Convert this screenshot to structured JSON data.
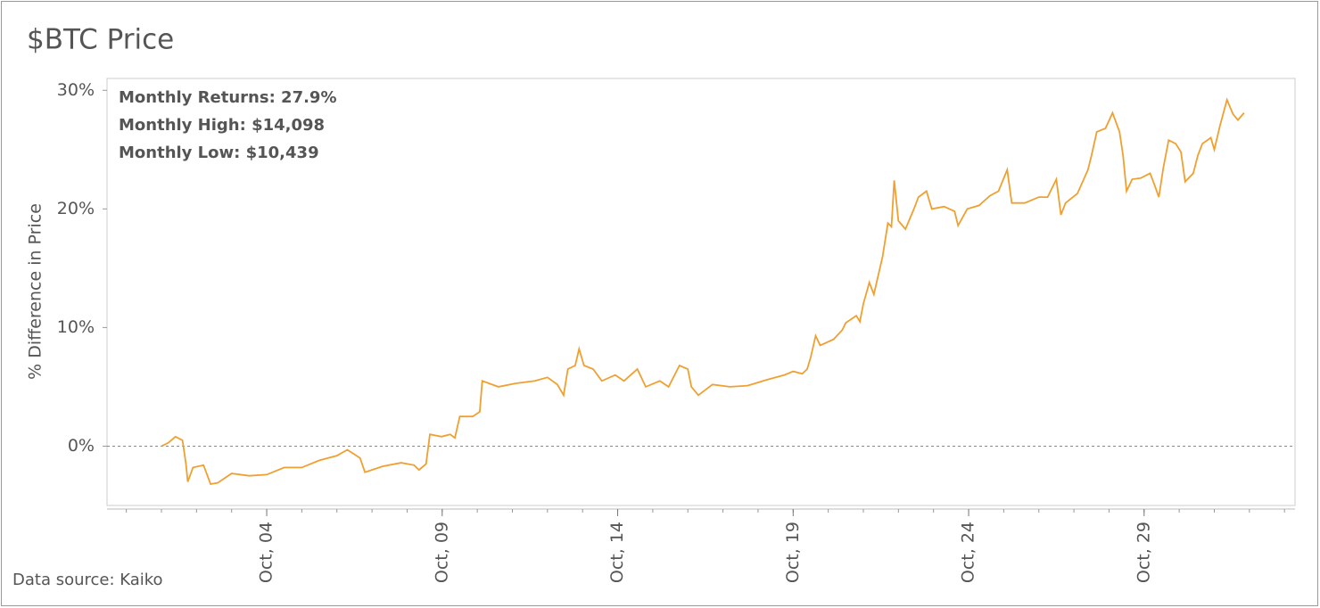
{
  "chart_data": {
    "type": "line",
    "title": "$BTC Price",
    "ylabel": "% Difference in Price",
    "source": "Data source: Kaiko",
    "annotations": [
      "Monthly Returns: 27.9%",
      "Monthly High: $14,098",
      "Monthly Low: $10,439"
    ],
    "xlim": [
      -0.55,
      33.3
    ],
    "ylim": [
      -5,
      31
    ],
    "xticks": [
      {
        "value": 4,
        "label": "Oct, 04"
      },
      {
        "value": 9,
        "label": "Oct, 09"
      },
      {
        "value": 14,
        "label": "Oct, 14"
      },
      {
        "value": 19,
        "label": "Oct, 19"
      },
      {
        "value": 24,
        "label": "Oct, 24"
      },
      {
        "value": 29,
        "label": "Oct, 29"
      }
    ],
    "xminorticks": [
      0,
      1,
      2,
      3,
      4,
      5,
      6,
      7,
      8,
      9,
      10,
      11,
      12,
      13,
      14,
      15,
      16,
      17,
      18,
      19,
      20,
      21,
      22,
      23,
      24,
      25,
      26,
      27,
      28,
      29,
      30,
      31,
      32,
      33
    ],
    "yticks": [
      {
        "value": 0,
        "label": "0%"
      },
      {
        "value": 10,
        "label": "10%"
      },
      {
        "value": 20,
        "label": "20%"
      },
      {
        "value": 30,
        "label": "30%"
      }
    ],
    "hline": 0,
    "grid": false,
    "series": [
      {
        "name": "$BTC",
        "color": "#f0a030",
        "x": [
          1.0,
          1.2,
          1.4,
          1.6,
          1.7,
          1.75,
          1.9,
          2.2,
          2.4,
          2.6,
          3.0,
          3.5,
          4.0,
          4.5,
          5.0,
          5.5,
          6.0,
          6.3,
          6.66,
          6.8,
          7.3,
          7.83,
          8.2,
          8.34,
          8.54,
          8.65,
          8.98,
          9.23,
          9.36,
          9.5,
          9.87,
          10.07,
          10.14,
          10.6,
          11.1,
          11.64,
          12.0,
          12.28,
          12.46,
          12.58,
          12.79,
          12.9,
          13.04,
          13.3,
          13.55,
          13.93,
          14.18,
          14.56,
          14.8,
          15.2,
          15.45,
          15.76,
          16.0,
          16.1,
          16.3,
          16.7,
          17.2,
          17.7,
          18.25,
          18.75,
          19.0,
          19.26,
          19.4,
          19.5,
          19.64,
          19.77,
          20.15,
          20.4,
          20.5,
          20.8,
          20.9,
          21.0,
          21.17,
          21.3,
          21.55,
          21.7,
          21.8,
          21.88,
          22.0,
          22.2,
          22.44,
          22.57,
          22.8,
          22.95,
          23.3,
          23.6,
          23.7,
          23.96,
          24.3,
          24.6,
          24.85,
          25.1,
          25.23,
          25.6,
          26.0,
          26.25,
          26.5,
          26.63,
          26.76,
          27.1,
          27.4,
          27.5,
          27.65,
          27.9,
          28.1,
          28.3,
          28.4,
          28.5,
          28.66,
          28.9,
          29.17,
          29.3,
          29.42,
          29.55,
          29.7,
          29.9,
          30.05,
          30.17,
          30.4,
          30.53,
          30.66,
          30.9,
          31.0,
          31.16,
          31.36,
          31.53,
          31.67,
          31.85
        ],
        "values": [
          0,
          0.3,
          0.8,
          0.5,
          -1.5,
          -3.0,
          -1.8,
          -1.6,
          -3.2,
          -3.1,
          -2.3,
          -2.5,
          -2.4,
          -1.8,
          -1.8,
          -1.2,
          -0.8,
          -0.3,
          -1.0,
          -2.2,
          -1.7,
          -1.4,
          -1.6,
          -2.0,
          -1.5,
          1.0,
          0.8,
          1.0,
          0.7,
          2.5,
          2.5,
          2.9,
          5.5,
          5.0,
          5.3,
          5.5,
          5.8,
          5.2,
          4.3,
          6.5,
          6.8,
          8.2,
          6.8,
          6.5,
          5.5,
          6.0,
          5.5,
          6.5,
          5.0,
          5.5,
          5.0,
          6.8,
          6.5,
          5.0,
          4.3,
          5.2,
          5.0,
          5.1,
          5.6,
          6.0,
          6.3,
          6.1,
          6.5,
          7.5,
          9.3,
          8.5,
          9.0,
          9.8,
          10.4,
          11.0,
          10.5,
          12.0,
          13.8,
          12.8,
          16.0,
          18.8,
          18.5,
          22.4,
          19.0,
          18.3,
          20.0,
          21.0,
          21.5,
          20.0,
          20.2,
          19.8,
          18.6,
          20.0,
          20.3,
          21.1,
          21.5,
          23.3,
          20.5,
          20.5,
          21.0,
          21.0,
          22.5,
          19.5,
          20.5,
          21.3,
          23.3,
          24.5,
          26.5,
          26.8,
          28.1,
          26.5,
          24.5,
          21.5,
          22.5,
          22.6,
          23.0,
          22.0,
          21.0,
          23.5,
          25.8,
          25.5,
          24.8,
          22.3,
          23.0,
          24.5,
          25.5,
          26.0,
          25.0,
          27.0,
          29.2,
          28.0,
          27.5,
          28.1
        ]
      }
    ]
  }
}
